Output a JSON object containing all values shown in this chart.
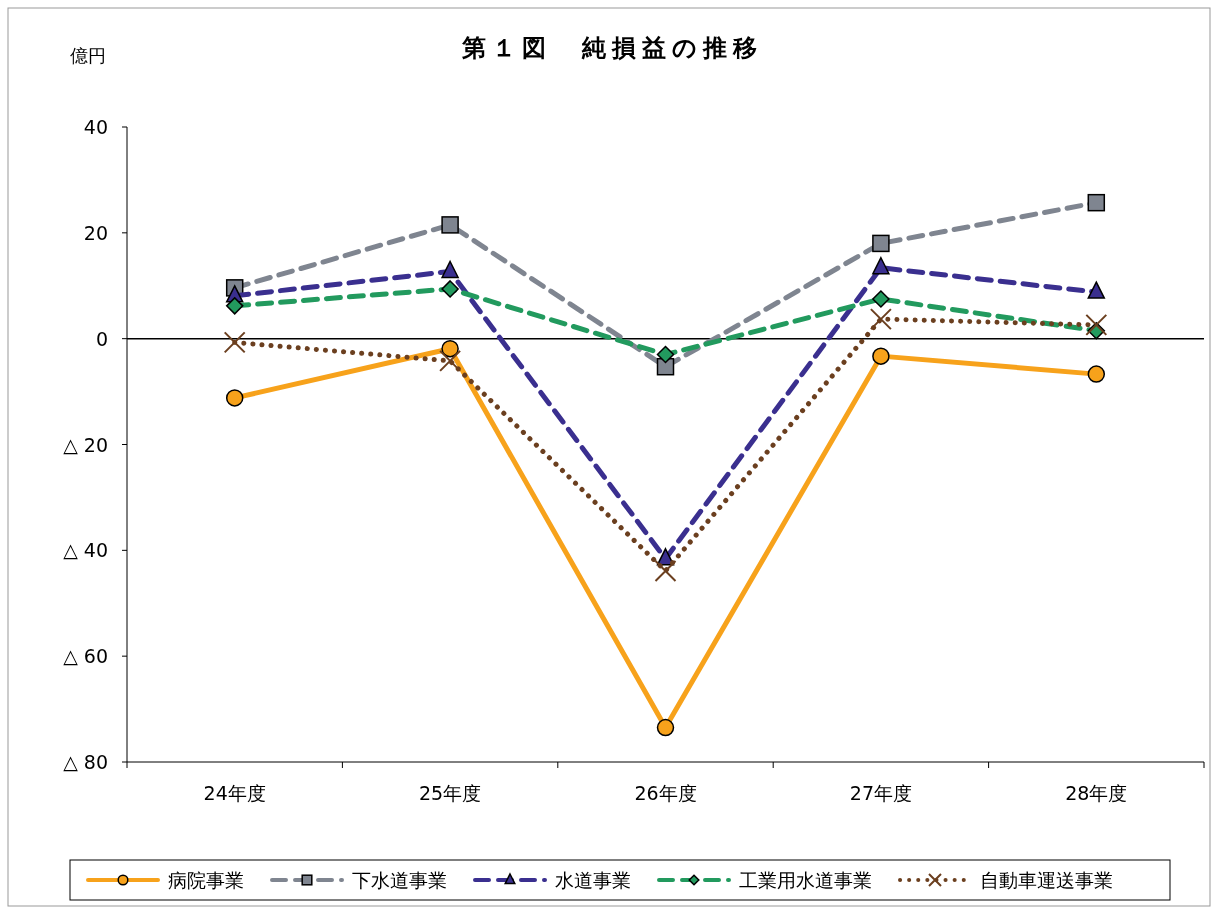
{
  "chart_data": {
    "type": "line",
    "title": "第１図　純損益の推移",
    "ylabel": "億円",
    "categories": [
      "24年度",
      "25年度",
      "26年度",
      "27年度",
      "28年度"
    ],
    "ylim": [
      -80,
      40
    ],
    "yticks": [
      40,
      20,
      0,
      {
        "value": -20,
        "label": "△ 20"
      },
      {
        "value": -40,
        "label": "△ 40"
      },
      {
        "value": -60,
        "label": "△ 60"
      },
      {
        "value": -80,
        "label": "△ 80"
      }
    ],
    "ref_lines": [
      {
        "axis": "y",
        "value": 0,
        "color": "#000000"
      }
    ],
    "legend": "bottom",
    "series": [
      {
        "name": "病院事業",
        "color": "#f7a21b",
        "marker": "circle",
        "line_style": "solid",
        "values": [
          -11.2,
          -1.9,
          -73.5,
          -3.3,
          -6.7
        ]
      },
      {
        "name": "下水道事業",
        "color": "#7f8590",
        "marker": "square",
        "line_style": "dashed",
        "values": [
          9.6,
          21.5,
          -5.3,
          18.0,
          25.7
        ]
      },
      {
        "name": "水道事業",
        "color": "#3a2f8f",
        "marker": "triangle",
        "line_style": "dashed",
        "values": [
          8.1,
          12.7,
          -41.6,
          13.4,
          8.8
        ]
      },
      {
        "name": "工業用水道事業",
        "color": "#229a5e",
        "marker": "diamond",
        "line_style": "dashed",
        "values": [
          6.2,
          9.4,
          -3.0,
          7.5,
          1.5
        ]
      },
      {
        "name": "自動車運送事業",
        "color": "#6b3f1f",
        "marker": "cross",
        "line_style": "dotted",
        "values": [
          -0.7,
          -4.2,
          -43.9,
          3.7,
          2.6
        ]
      }
    ]
  }
}
